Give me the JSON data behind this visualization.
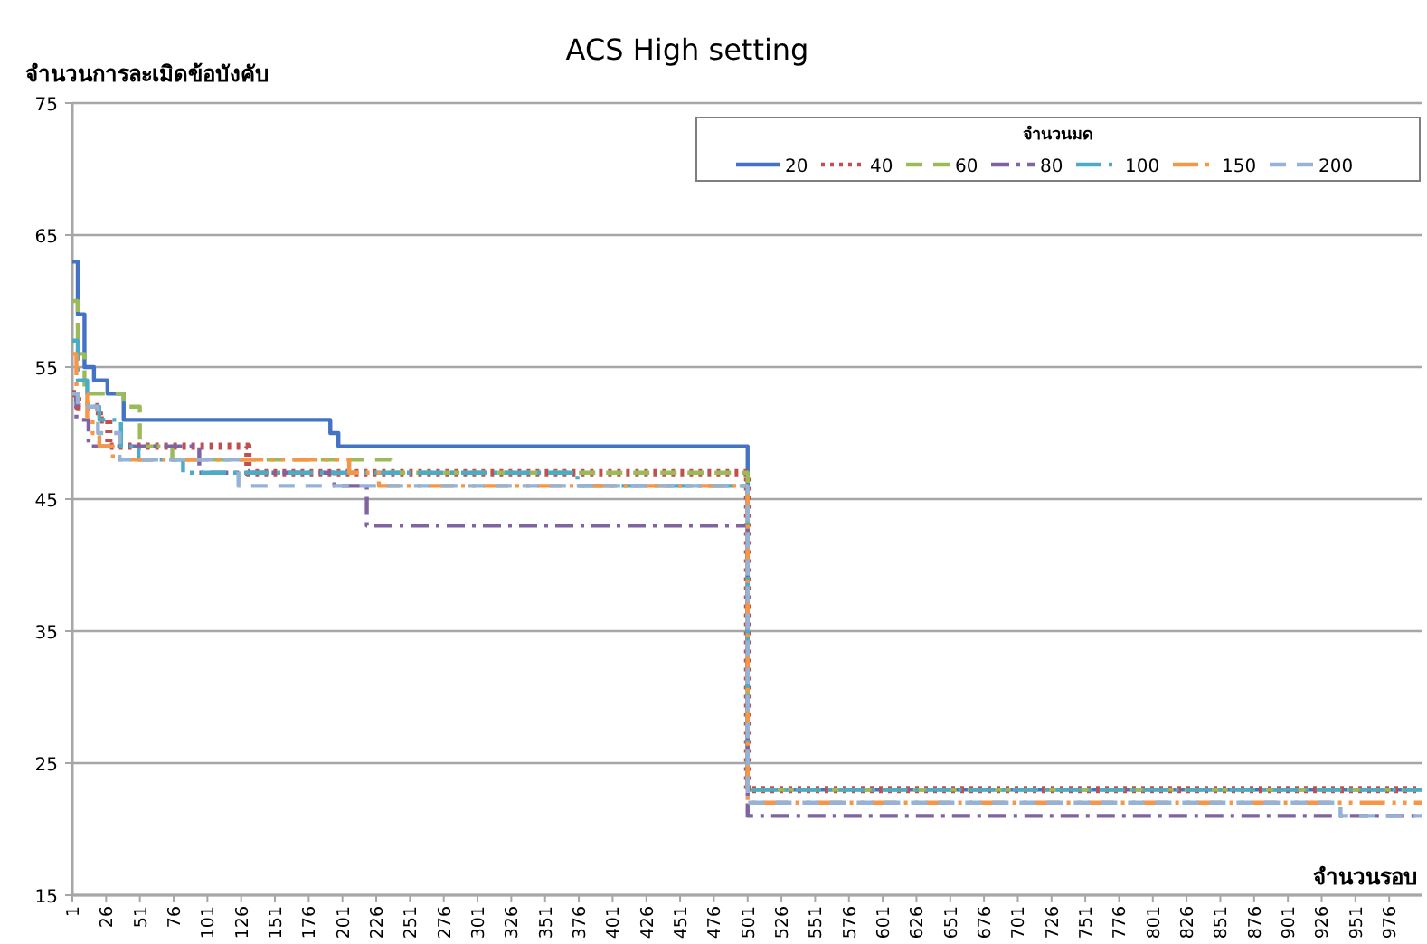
{
  "chart_data": {
    "type": "step",
    "title": "ACS High setting",
    "xlabel": "จำนวนรอบ",
    "ylabel": "จำนวนการละเมิดข้อบังคับ",
    "legend_title": "จำนวนมด",
    "legend": "top right",
    "grid": "y",
    "xlim": [
      1,
      1000
    ],
    "xticks": [
      1,
      26,
      51,
      76,
      101,
      126,
      151,
      176,
      201,
      226,
      251,
      276,
      301,
      326,
      351,
      376,
      401,
      426,
      451,
      476,
      501,
      526,
      551,
      576,
      601,
      626,
      651,
      676,
      701,
      726,
      751,
      776,
      801,
      826,
      851,
      876,
      901,
      926,
      951,
      976
    ],
    "ylim": [
      15,
      75
    ],
    "yticks": [
      15,
      25,
      35,
      45,
      55,
      65,
      75
    ],
    "series": [
      {
        "name": "20",
        "color": "#4472c4",
        "line_style": "solid",
        "x": [
          1,
          5,
          10,
          17,
          27,
          39,
          192,
          198,
          501,
          1000
        ],
        "values": [
          63,
          59,
          55,
          54,
          53,
          51,
          50,
          49,
          23,
          23
        ]
      },
      {
        "name": "40",
        "color": "#c0504d",
        "line_style": "dotted",
        "x": [
          1,
          5,
          21,
          28,
          131,
          501,
          1000
        ],
        "values": [
          53,
          52,
          51,
          49,
          47,
          23,
          23
        ]
      },
      {
        "name": "60",
        "color": "#9bbb59",
        "line_style": "dashed",
        "x": [
          1,
          5,
          10,
          39,
          51,
          75,
          237,
          501,
          1000
        ],
        "values": [
          60,
          56,
          53,
          52,
          49,
          48,
          47,
          23,
          23
        ]
      },
      {
        "name": "80",
        "color": "#8064a2",
        "line_style": "dashed",
        "x": [
          1,
          4,
          13,
          95,
          195,
          219,
          501,
          1000
        ],
        "values": [
          53,
          51,
          49,
          47,
          46,
          43,
          21,
          21
        ]
      },
      {
        "name": "100",
        "color": "#4bacc6",
        "line_style": "dashed",
        "x": [
          1,
          5,
          12,
          21,
          37,
          50,
          83,
          375,
          501,
          1000
        ],
        "values": [
          57,
          54,
          52,
          51,
          49,
          48,
          47,
          46,
          23,
          23
        ]
      },
      {
        "name": "150",
        "color": "#f79646",
        "line_style": "dashed",
        "x": [
          1,
          4,
          12,
          16,
          21,
          31,
          206,
          228,
          501,
          1000
        ],
        "values": [
          56,
          53,
          51,
          50,
          49,
          48,
          47,
          46,
          22,
          22
        ]
      },
      {
        "name": "200",
        "color": "#95b3d7",
        "line_style": "dashed",
        "x": [
          1,
          5,
          20,
          36,
          124,
          501,
          940,
          1000
        ],
        "values": [
          53,
          52,
          50,
          48,
          46,
          22,
          21,
          21
        ]
      }
    ]
  }
}
